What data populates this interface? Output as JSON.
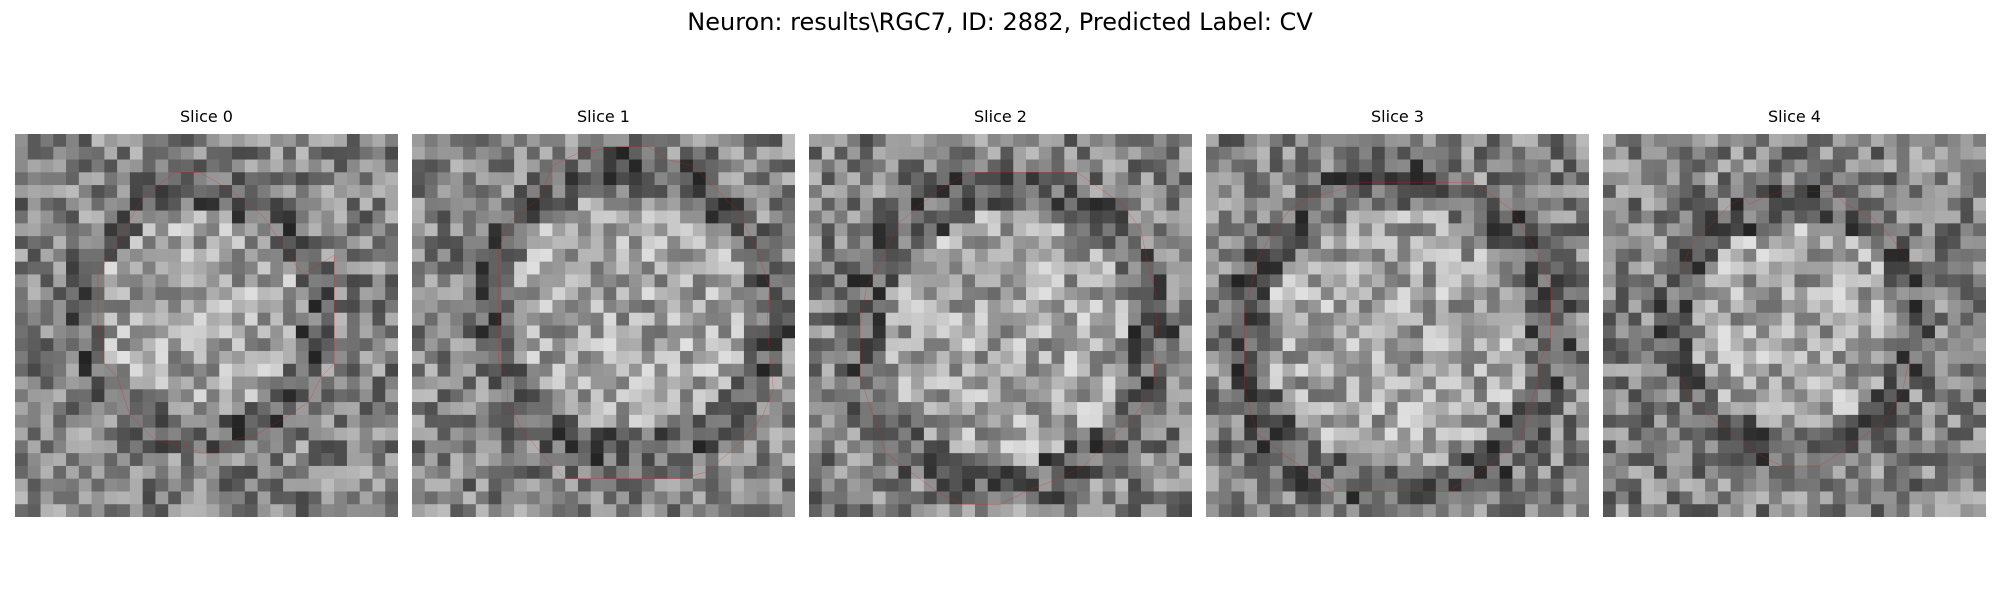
{
  "figure": {
    "title": "Neuron: results\\RGC7, ID: 2882, Predicted Label: CV",
    "contour_color": "#ee1111",
    "colormap": "grayscale"
  },
  "slices": [
    {
      "title": "Slice 0"
    },
    {
      "title": "Slice 1"
    },
    {
      "title": "Slice 2"
    },
    {
      "title": "Slice 3"
    },
    {
      "title": "Slice 4"
    }
  ]
}
